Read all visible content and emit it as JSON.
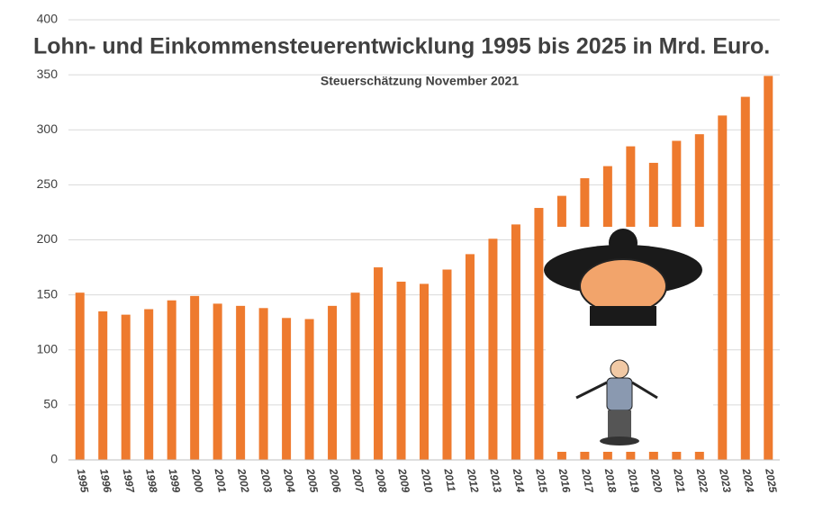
{
  "chart_data": {
    "type": "bar",
    "title": "Lohn- und Einkommensteuerentwicklung 1995 bis 2025 in Mrd. Euro.",
    "subtitle": "Steuerschätzung November 2021",
    "categories": [
      "1995",
      "1996",
      "1997",
      "1998",
      "1999",
      "2000",
      "2001",
      "2002",
      "2003",
      "2004",
      "2005",
      "2006",
      "2007",
      "2008",
      "2009",
      "2010",
      "2011",
      "2012",
      "2013",
      "2014",
      "2015",
      "2016",
      "2017",
      "2018",
      "2019",
      "2020",
      "2021",
      "2022",
      "2023",
      "2024",
      "2025"
    ],
    "values": [
      152,
      135,
      132,
      137,
      145,
      149,
      142,
      140,
      138,
      129,
      128,
      140,
      152,
      175,
      162,
      160,
      173,
      187,
      201,
      214,
      229,
      240,
      256,
      267,
      285,
      270,
      290,
      296,
      313,
      330,
      349
    ],
    "color": "#ee7a2e",
    "ylim": [
      0,
      400
    ],
    "yticks": [
      0,
      50,
      100,
      150,
      200,
      250,
      300,
      350,
      400
    ],
    "grid": true
  }
}
